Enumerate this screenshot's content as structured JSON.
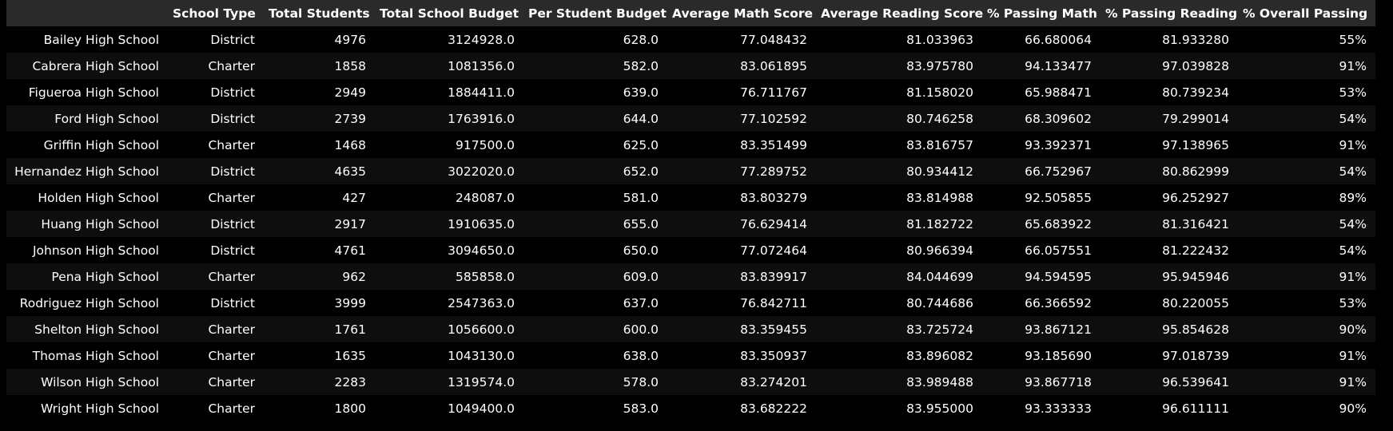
{
  "table": {
    "index_header": "",
    "columns": [
      "School Type",
      "Total Students",
      "Total School Budget",
      "Per Student Budget",
      "Average Math Score",
      "Average Reading Score",
      "% Passing Math",
      "% Passing Reading",
      "% Overall Passing"
    ],
    "rows": [
      {
        "name": "Bailey High School",
        "cells": [
          "District",
          "4976",
          "3124928.0",
          "628.0",
          "77.048432",
          "81.033963",
          "66.680064",
          "81.933280",
          "55%"
        ]
      },
      {
        "name": "Cabrera High School",
        "cells": [
          "Charter",
          "1858",
          "1081356.0",
          "582.0",
          "83.061895",
          "83.975780",
          "94.133477",
          "97.039828",
          "91%"
        ]
      },
      {
        "name": "Figueroa High School",
        "cells": [
          "District",
          "2949",
          "1884411.0",
          "639.0",
          "76.711767",
          "81.158020",
          "65.988471",
          "80.739234",
          "53%"
        ]
      },
      {
        "name": "Ford High School",
        "cells": [
          "District",
          "2739",
          "1763916.0",
          "644.0",
          "77.102592",
          "80.746258",
          "68.309602",
          "79.299014",
          "54%"
        ]
      },
      {
        "name": "Griffin High School",
        "cells": [
          "Charter",
          "1468",
          "917500.0",
          "625.0",
          "83.351499",
          "83.816757",
          "93.392371",
          "97.138965",
          "91%"
        ]
      },
      {
        "name": "Hernandez High School",
        "cells": [
          "District",
          "4635",
          "3022020.0",
          "652.0",
          "77.289752",
          "80.934412",
          "66.752967",
          "80.862999",
          "54%"
        ]
      },
      {
        "name": "Holden High School",
        "cells": [
          "Charter",
          "427",
          "248087.0",
          "581.0",
          "83.803279",
          "83.814988",
          "92.505855",
          "96.252927",
          "89%"
        ]
      },
      {
        "name": "Huang High School",
        "cells": [
          "District",
          "2917",
          "1910635.0",
          "655.0",
          "76.629414",
          "81.182722",
          "65.683922",
          "81.316421",
          "54%"
        ]
      },
      {
        "name": "Johnson High School",
        "cells": [
          "District",
          "4761",
          "3094650.0",
          "650.0",
          "77.072464",
          "80.966394",
          "66.057551",
          "81.222432",
          "54%"
        ]
      },
      {
        "name": "Pena High School",
        "cells": [
          "Charter",
          "962",
          "585858.0",
          "609.0",
          "83.839917",
          "84.044699",
          "94.594595",
          "95.945946",
          "91%"
        ]
      },
      {
        "name": "Rodriguez High School",
        "cells": [
          "District",
          "3999",
          "2547363.0",
          "637.0",
          "76.842711",
          "80.744686",
          "66.366592",
          "80.220055",
          "53%"
        ]
      },
      {
        "name": "Shelton High School",
        "cells": [
          "Charter",
          "1761",
          "1056600.0",
          "600.0",
          "83.359455",
          "83.725724",
          "93.867121",
          "95.854628",
          "90%"
        ]
      },
      {
        "name": "Thomas High School",
        "cells": [
          "Charter",
          "1635",
          "1043130.0",
          "638.0",
          "83.350937",
          "83.896082",
          "93.185690",
          "97.018739",
          "91%"
        ]
      },
      {
        "name": "Wilson High School",
        "cells": [
          "Charter",
          "2283",
          "1319574.0",
          "578.0",
          "83.274201",
          "83.989488",
          "93.867718",
          "96.539641",
          "91%"
        ]
      },
      {
        "name": "Wright High School",
        "cells": [
          "Charter",
          "1800",
          "1049400.0",
          "583.0",
          "83.682222",
          "83.955000",
          "93.333333",
          "96.611111",
          "90%"
        ]
      }
    ]
  },
  "colors": {
    "background": "#000000",
    "header_background": "#2a2a2a",
    "row_alt_background": "#0e0e0e",
    "text": "#ffffff"
  }
}
